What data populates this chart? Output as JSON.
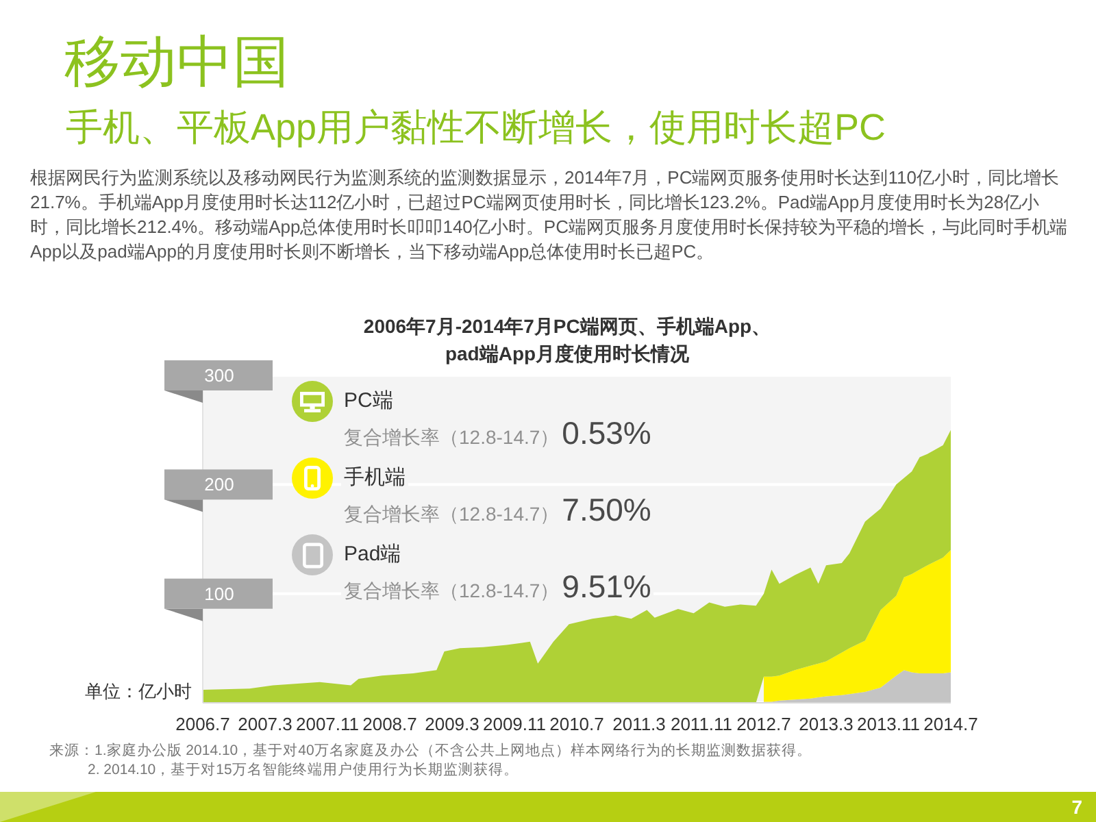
{
  "chart_data": {
    "type": "area",
    "title": "移动中国",
    "subtitle": "手机、平板App用户黏性不断增长，使用时长超PC",
    "ylabel": "单位：亿小时",
    "annotations": [
      "根据网民行为监测系统以及移动网民行为监测系统的监测数据显示，2014年7月，PC端网页服务使用时长达到110亿小时，同比增长21.7%。手机端App月度使用时长达112亿小时，已超过PC端网页使用时长，同比增长123.2%。Pad端App月度使用时长为28亿小时，同比增长212.4%。移动端App总体使用时长叩叩140亿小时。PC端网页服务月度使用时长保持较为平稳的增长，与此同时手机端App以及pad端App的月度使用时长则不断增长，当下移动端App总体使用时长已超PC。",
      "2006年7月-2014年7月PC端网页、手机端App、pad端App月度使用时长情况",
      "复合增长率（12.8-14.7）0.53%",
      "复合增长率（12.8-14.7）7.50%",
      "复合增长率（12.8-14.7）9.51%",
      "来源：1.家庭办公版 2014.10，基于对40万名家庭及办公（不含公共上网地点）样本网络行为的长期监测数据获得。",
      "2. 2014.10，基于对15万名智能终端用户使用行为长期监测获得。",
      "7"
    ],
    "x": [
      "2006-07",
      "2007-01",
      "2007-04",
      "2007-10",
      "2008-02",
      "2008-03",
      "2008-06",
      "2008-10",
      "2009-01",
      "2009-02",
      "2009-04",
      "2009-07",
      "2009-10",
      "2010-01",
      "2010-02",
      "2010-04",
      "2010-06",
      "2010-09",
      "2010-12",
      "2011-02",
      "2011-04",
      "2011-05",
      "2011-08",
      "2011-10",
      "2011-12",
      "2012-02",
      "2012-04",
      "2012-06",
      "2012-07",
      "2012-08",
      "2012-09",
      "2012-11",
      "2013-01",
      "2013-02",
      "2013-03",
      "2013-05",
      "2013-06",
      "2013-08",
      "2013-10",
      "2013-12",
      "2014-01",
      "2014-02",
      "2014-03",
      "2014-04",
      "2014-06",
      "2014-07"
    ],
    "series": [
      {
        "name": "Pad端",
        "color": "#c4c4c4",
        "values": [
          null,
          null,
          null,
          null,
          null,
          null,
          null,
          null,
          null,
          null,
          null,
          null,
          null,
          null,
          null,
          null,
          null,
          null,
          null,
          null,
          null,
          null,
          null,
          null,
          null,
          null,
          null,
          null,
          1,
          1,
          2,
          3,
          4,
          5,
          6,
          7,
          8,
          10,
          14,
          25,
          30,
          28,
          27,
          27,
          27,
          28
        ]
      },
      {
        "name": "手机端",
        "color": "#fff200",
        "values": [
          null,
          null,
          null,
          null,
          null,
          null,
          null,
          null,
          null,
          null,
          null,
          null,
          null,
          null,
          null,
          null,
          null,
          null,
          null,
          null,
          null,
          null,
          null,
          null,
          null,
          null,
          null,
          null,
          23,
          23,
          23,
          27,
          30,
          31,
          32,
          39,
          42,
          47,
          71,
          73,
          85,
          90,
          95,
          99,
          106,
          112
        ]
      },
      {
        "name": "PC端",
        "color": "#afd136",
        "values": [
          12,
          13,
          16,
          19,
          16,
          22,
          25,
          27,
          30,
          47,
          50,
          51,
          53,
          56,
          36,
          56,
          72,
          77,
          80,
          77,
          85,
          78,
          86,
          82,
          92,
          88,
          90,
          89,
          76,
          98,
          84,
          87,
          90,
          73,
          88,
          82,
          87,
          109,
          93,
          102,
          91,
          94,
          103,
          102,
          103,
          110
        ]
      }
    ],
    "stacked": true,
    "xlim": [
      "2006-07",
      "2014-07"
    ],
    "xticks": [
      {
        "value": "2006-07",
        "label": "2006.7"
      },
      {
        "value": "2007-03",
        "label": "2007.3"
      },
      {
        "value": "2007-11",
        "label": "2007.11"
      },
      {
        "value": "2008-07",
        "label": "2008.7"
      },
      {
        "value": "2009-03",
        "label": "2009.3"
      },
      {
        "value": "2009-11",
        "label": "2009.11"
      },
      {
        "value": "2010-07",
        "label": "2010.7"
      },
      {
        "value": "2011-03",
        "label": "2011.3"
      },
      {
        "value": "2011-11",
        "label": "2011.11"
      },
      {
        "value": "2012-07",
        "label": "2012.7"
      },
      {
        "value": "2013-03",
        "label": "2013.3"
      },
      {
        "value": "2013-11",
        "label": "2013.11"
      },
      {
        "value": "2014-07",
        "label": "2014.7"
      }
    ],
    "ylim": [
      0,
      300
    ],
    "yticks": [
      100,
      200,
      300
    ],
    "grid": "y",
    "legend": "top left"
  }
}
